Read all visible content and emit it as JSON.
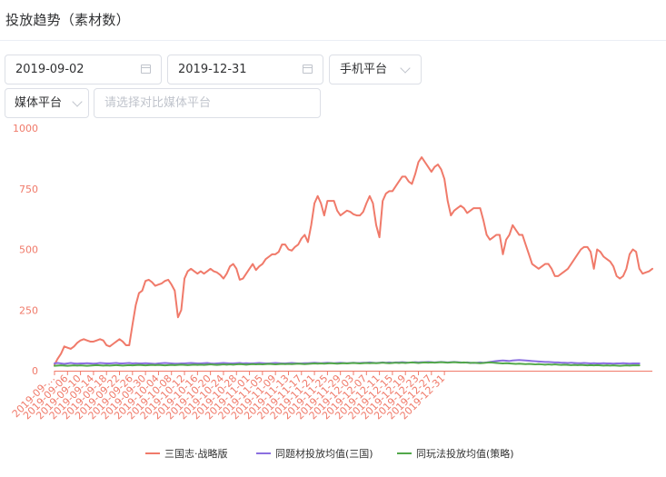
{
  "page": {
    "title": "投放趋势（素材数）"
  },
  "filters": {
    "start_date": "2019-09-02",
    "end_date": "2019-12-31",
    "platform": "手机平台",
    "media": "媒体平台",
    "compare_placeholder": "请选择对比媒体平台"
  },
  "chart_data": {
    "type": "line",
    "title": "",
    "xlabel": "",
    "ylabel": "",
    "ylim": [
      0,
      1000
    ],
    "yticks": [
      0,
      250,
      500,
      750,
      1000
    ],
    "grid": false,
    "legend_position": "bottom",
    "x_start": "2019-09-02",
    "x_tick_labels": [
      "2019-09-…",
      "2019-09-06",
      "2019-09-10",
      "2019-09-14",
      "2019-09-18",
      "2019-09-22",
      "2019-09-26",
      "2019-09-30",
      "2019-10-04",
      "2019-10-08",
      "2019-10-12",
      "2019-10-16",
      "2019-10-20",
      "2019-10-24",
      "2019-10-28",
      "2019-11-01",
      "2019-11-05",
      "2019-11-09",
      "2019-11-13",
      "2019-11-17",
      "2019-11-21",
      "2019-11-25",
      "2019-11-29",
      "2019-12-03",
      "2019-12-07",
      "2019-12-11",
      "2019-12-15",
      "2019-12-19",
      "2019-12-23",
      "2019-12-27",
      "2019-12-31"
    ],
    "series": [
      {
        "name": "三国志·战略版",
        "color": "#f07a6a",
        "values": [
          25,
          50,
          70,
          100,
          95,
          90,
          100,
          115,
          125,
          130,
          125,
          120,
          120,
          125,
          130,
          125,
          105,
          100,
          110,
          120,
          130,
          120,
          105,
          105,
          190,
          270,
          320,
          330,
          370,
          375,
          365,
          350,
          355,
          360,
          370,
          375,
          355,
          330,
          220,
          250,
          380,
          410,
          420,
          410,
          400,
          410,
          400,
          410,
          420,
          410,
          405,
          395,
          380,
          400,
          430,
          440,
          420,
          375,
          380,
          400,
          420,
          440,
          415,
          430,
          440,
          460,
          470,
          480,
          480,
          490,
          520,
          520,
          500,
          495,
          510,
          520,
          545,
          560,
          530,
          600,
          690,
          720,
          690,
          640,
          700,
          700,
          700,
          660,
          640,
          650,
          660,
          655,
          645,
          640,
          640,
          655,
          690,
          720,
          690,
          600,
          550,
          700,
          730,
          740,
          740,
          760,
          780,
          800,
          800,
          780,
          770,
          810,
          860,
          880,
          860,
          840,
          820,
          840,
          850,
          830,
          790,
          700,
          640,
          660,
          670,
          680,
          670,
          650,
          660,
          670,
          670,
          670,
          620,
          560,
          540,
          550,
          560,
          560,
          480,
          540,
          560,
          600,
          580,
          560,
          560,
          520,
          480,
          440,
          430,
          420,
          430,
          440,
          440,
          420,
          390,
          390,
          400,
          410,
          420,
          440,
          460,
          480,
          500,
          510,
          510,
          490,
          420,
          500,
          490,
          470,
          460,
          450,
          430,
          390,
          380,
          390,
          420,
          480,
          500,
          490,
          420,
          400,
          405,
          410,
          420
        ]
      },
      {
        "name": "同题材投放均值(三国)",
        "color": "#8b6fe0",
        "values": [
          30,
          32,
          30,
          28,
          30,
          32,
          30,
          29,
          30,
          30,
          31,
          30,
          29,
          30,
          32,
          31,
          30,
          30,
          31,
          32,
          30,
          30,
          31,
          32,
          30,
          31,
          30,
          30,
          31,
          30,
          29,
          28,
          30,
          31,
          32,
          31,
          30,
          29,
          29,
          30,
          30,
          31,
          32,
          31,
          30,
          30,
          31,
          32,
          30,
          29,
          30,
          31,
          32,
          31,
          30,
          30,
          31,
          32,
          30,
          31,
          30,
          30,
          31,
          32,
          31,
          30,
          30,
          31,
          32,
          31,
          30,
          30,
          31,
          32,
          31,
          30,
          30,
          31,
          31,
          32,
          33,
          32,
          31,
          32,
          33,
          32,
          31,
          32,
          33,
          32,
          31,
          32,
          33,
          32,
          32,
          33,
          33,
          34,
          33,
          32,
          33,
          34,
          33,
          34,
          33,
          34,
          34,
          35,
          34,
          33,
          34,
          35,
          34,
          35,
          35,
          36,
          35,
          34,
          35,
          36,
          35,
          34,
          35,
          36,
          35,
          34,
          33,
          34,
          33,
          32,
          33,
          34,
          33,
          34,
          36,
          38,
          40,
          41,
          42,
          41,
          40,
          42,
          43,
          44,
          43,
          42,
          41,
          40,
          39,
          38,
          37,
          36,
          36,
          35,
          34,
          34,
          33,
          33,
          32,
          33,
          32,
          31,
          31,
          32,
          31,
          30,
          31,
          30,
          30,
          31,
          30,
          30,
          29,
          30,
          30,
          31,
          30,
          29,
          30,
          30,
          30
        ]
      },
      {
        "name": "同玩法投放均值(策略)",
        "color": "#52a84a",
        "values": [
          20,
          21,
          22,
          21,
          20,
          21,
          22,
          21,
          22,
          21,
          20,
          21,
          22,
          23,
          22,
          21,
          22,
          21,
          22,
          23,
          22,
          21,
          22,
          23,
          22,
          23,
          24,
          23,
          22,
          23,
          24,
          23,
          24,
          23,
          22,
          23,
          24,
          23,
          24,
          25,
          24,
          23,
          24,
          25,
          24,
          25,
          24,
          25,
          26,
          25,
          24,
          25,
          26,
          25,
          26,
          25,
          26,
          27,
          26,
          25,
          26,
          27,
          26,
          27,
          26,
          27,
          28,
          27,
          26,
          27,
          28,
          27,
          28,
          27,
          28,
          29,
          28,
          27,
          28,
          29,
          30,
          29,
          30,
          29,
          30,
          31,
          30,
          29,
          30,
          31,
          30,
          31,
          32,
          31,
          30,
          31,
          32,
          31,
          32,
          31,
          32,
          33,
          32,
          31,
          32,
          33,
          32,
          33,
          32,
          33,
          34,
          33,
          32,
          33,
          34,
          33,
          34,
          33,
          34,
          35,
          34,
          33,
          34,
          35,
          34,
          33,
          34,
          33,
          32,
          33,
          32,
          31,
          32,
          33,
          34,
          33,
          32,
          31,
          30,
          31,
          30,
          29,
          28,
          29,
          28,
          27,
          28,
          27,
          26,
          27,
          26,
          25,
          26,
          25,
          26,
          25,
          24,
          25,
          24,
          23,
          24,
          23,
          24,
          23,
          22,
          23,
          22,
          23,
          22,
          21,
          22,
          21,
          22,
          21,
          20,
          21,
          22,
          21,
          22,
          22,
          22
        ]
      }
    ]
  }
}
